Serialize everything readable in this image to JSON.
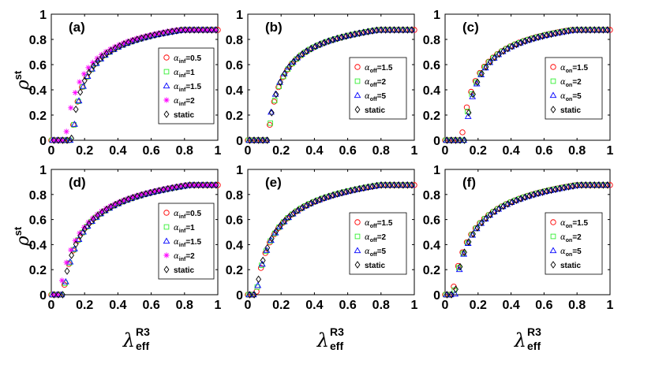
{
  "figure_ylabel": {
    "symbol": "ρ",
    "superscript": "st"
  },
  "figure_xlabel": {
    "symbol": "λ",
    "superscript": "R3",
    "subscript": "eff"
  },
  "chart_data": [
    {
      "panel": "(a)",
      "type": "scatter",
      "xlim": [
        0,
        1
      ],
      "ylim": [
        0,
        1
      ],
      "xticks": [
        "0",
        "0.2",
        "0.4",
        "0.6",
        "0.8",
        "1"
      ],
      "yticks": [
        "0",
        "0.2",
        "0.4",
        "0.6",
        "0.8",
        "1"
      ],
      "legend": [
        {
          "symbol": "α",
          "sub": "inf",
          "value": "=0.5",
          "marker": "circle",
          "color": "#ff0000"
        },
        {
          "symbol": "α",
          "sub": "inf",
          "value": "=1",
          "marker": "square",
          "color": "#33ee33"
        },
        {
          "symbol": "α",
          "sub": "inf",
          "value": "=1.5",
          "marker": "triangle",
          "color": "#0000ff"
        },
        {
          "symbol": "α",
          "sub": "inf",
          "value": "=2",
          "marker": "star",
          "color": "#ff00ff"
        },
        {
          "symbol": "",
          "sub": "",
          "value": "static",
          "marker": "diamond",
          "color": "#000000"
        }
      ],
      "threshold": 0.12,
      "a": 0.085,
      "c": 0.102,
      "series_shift": [
        0,
        0.008,
        0.015,
        -0.07,
        0
      ]
    },
    {
      "panel": "(b)",
      "type": "scatter",
      "xlim": [
        0,
        1
      ],
      "ylim": [
        0,
        1
      ],
      "xticks": [
        "0",
        "0.2",
        "0.4",
        "0.6",
        "0.8",
        "1"
      ],
      "yticks": [
        "0",
        "0.2",
        "0.4",
        "0.6",
        "0.8",
        "1"
      ],
      "legend": [
        {
          "symbol": "α",
          "sub": "off",
          "value": "=1.5",
          "marker": "circle",
          "color": "#ff0000"
        },
        {
          "symbol": "α",
          "sub": "off",
          "value": "=2",
          "marker": "square",
          "color": "#33ee33"
        },
        {
          "symbol": "α",
          "sub": "off",
          "value": "=5",
          "marker": "triangle",
          "color": "#0000ff"
        },
        {
          "symbol": "",
          "sub": "",
          "value": "static",
          "marker": "diamond",
          "color": "#000000"
        }
      ],
      "threshold": 0.12,
      "a": 0.085,
      "c": 0.102,
      "series_shift": [
        0,
        0.005,
        -0.01,
        0
      ]
    },
    {
      "panel": "(c)",
      "type": "scatter",
      "xlim": [
        0,
        1
      ],
      "ylim": [
        0,
        1
      ],
      "xticks": [
        "0",
        "0.2",
        "0.4",
        "0.6",
        "0.8",
        "1"
      ],
      "yticks": [
        "0",
        "0.2",
        "0.4",
        "0.6",
        "0.8",
        "1"
      ],
      "legend": [
        {
          "symbol": "α",
          "sub": "on",
          "value": "=1.5",
          "marker": "circle",
          "color": "#ff0000"
        },
        {
          "symbol": "α",
          "sub": "on",
          "value": "=2",
          "marker": "square",
          "color": "#33ee33"
        },
        {
          "symbol": "α",
          "sub": "on",
          "value": "=5",
          "marker": "triangle",
          "color": "#0000ff"
        },
        {
          "symbol": "",
          "sub": "",
          "value": "static",
          "marker": "diamond",
          "color": "#000000"
        }
      ],
      "threshold": 0.12,
      "a": 0.085,
      "c": 0.102,
      "series_shift": [
        -0.04,
        -0.02,
        0,
        0
      ]
    },
    {
      "panel": "(d)",
      "type": "scatter",
      "xlim": [
        0,
        1
      ],
      "ylim": [
        0,
        1
      ],
      "xticks": [
        "0",
        "0.2",
        "0.4",
        "0.6",
        "0.8",
        "1"
      ],
      "yticks": [
        "0",
        "0.2",
        "0.4",
        "0.6",
        "0.8",
        "1"
      ],
      "legend": [
        {
          "symbol": "α",
          "sub": "inf",
          "value": "=0.5",
          "marker": "circle",
          "color": "#ff0000"
        },
        {
          "symbol": "α",
          "sub": "inf",
          "value": "=1",
          "marker": "square",
          "color": "#33ee33"
        },
        {
          "symbol": "α",
          "sub": "inf",
          "value": "=1.5",
          "marker": "triangle",
          "color": "#0000ff"
        },
        {
          "symbol": "α",
          "sub": "inf",
          "value": "=2",
          "marker": "star",
          "color": "#ff00ff"
        },
        {
          "symbol": "",
          "sub": "",
          "value": "static",
          "marker": "diamond",
          "color": "#000000"
        }
      ],
      "threshold": 0.07,
      "a": 0.12,
      "c": 0.15,
      "series_shift": [
        0,
        0.005,
        0.01,
        -0.04,
        0
      ]
    },
    {
      "panel": "(e)",
      "type": "scatter",
      "xlim": [
        0,
        1
      ],
      "ylim": [
        0,
        1
      ],
      "xticks": [
        "0",
        "0.2",
        "0.4",
        "0.6",
        "0.8",
        "1"
      ],
      "yticks": [
        "0",
        "0.2",
        "0.4",
        "0.6",
        "0.8",
        "1"
      ],
      "legend": [
        {
          "symbol": "α",
          "sub": "off",
          "value": "=1.5",
          "marker": "circle",
          "color": "#ff0000"
        },
        {
          "symbol": "α",
          "sub": "off",
          "value": "=2",
          "marker": "square",
          "color": "#33ee33"
        },
        {
          "symbol": "α",
          "sub": "off",
          "value": "=5",
          "marker": "triangle",
          "color": "#0000ff"
        },
        {
          "symbol": "",
          "sub": "",
          "value": "static",
          "marker": "diamond",
          "color": "#000000"
        }
      ],
      "threshold": 0.05,
      "a": 0.12,
      "c": 0.16,
      "series_shift": [
        0,
        0,
        0.005,
        0
      ]
    },
    {
      "panel": "(f)",
      "type": "scatter",
      "xlim": [
        0,
        1
      ],
      "ylim": [
        0,
        1
      ],
      "xticks": [
        "0",
        "0.2",
        "0.4",
        "0.6",
        "0.8",
        "1"
      ],
      "yticks": [
        "0",
        "0.2",
        "0.4",
        "0.6",
        "0.8",
        "1"
      ],
      "legend": [
        {
          "symbol": "α",
          "sub": "on",
          "value": "=1.5",
          "marker": "circle",
          "color": "#ff0000"
        },
        {
          "symbol": "α",
          "sub": "on",
          "value": "=2",
          "marker": "square",
          "color": "#33ee33"
        },
        {
          "symbol": "α",
          "sub": "on",
          "value": "=5",
          "marker": "triangle",
          "color": "#0000ff"
        },
        {
          "symbol": "",
          "sub": "",
          "value": "static",
          "marker": "diamond",
          "color": "#000000"
        }
      ],
      "threshold": 0.06,
      "a": 0.12,
      "c": 0.155,
      "series_shift": [
        -0.03,
        -0.015,
        0,
        0
      ]
    }
  ]
}
